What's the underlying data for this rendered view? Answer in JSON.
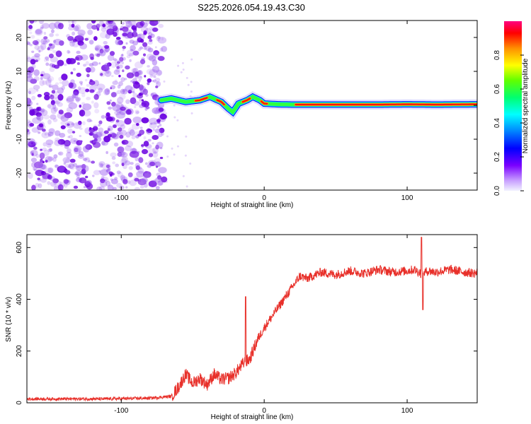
{
  "title": "S225.2026.054.19.43.C30",
  "colors": {
    "trace": "#e8302a",
    "scatter": "#9a5cf0",
    "scatter_dark": "#6a00e0",
    "axis": "#000000"
  },
  "chart_data": [
    {
      "type": "heatmap",
      "name": "spectrogram",
      "xlabel": "Height of straight line (km)",
      "ylabel": "Frequency (Hz)",
      "xlim": [
        -166,
        149
      ],
      "ylim": [
        -25,
        25
      ],
      "xticks": [
        -100,
        0,
        100
      ],
      "xtick_labels": [
        "-100",
        "0",
        "100"
      ],
      "yticks": [
        -20,
        -10,
        0,
        10,
        20
      ],
      "ytick_labels": [
        "-20",
        "-10",
        "0",
        "10",
        "20"
      ],
      "noise_region_x": [
        -166,
        -70
      ],
      "ridge": {
        "x": [
          -72,
          -65,
          -55,
          -45,
          -38,
          -30,
          -25,
          -22,
          -18,
          -12,
          -8,
          -3,
          0,
          10,
          20,
          40,
          80,
          100,
          120,
          149
        ],
        "freq": [
          1.5,
          2.0,
          1.0,
          1.5,
          2.5,
          1.0,
          -1.0,
          -2.0,
          0.5,
          1.5,
          2.5,
          1.5,
          0.5,
          0.3,
          0.2,
          0.2,
          0.2,
          0.3,
          0.2,
          0.3
        ]
      }
    },
    {
      "type": "colorbar",
      "name": "colorbar",
      "label": "Normalized spectral amplitude",
      "range": [
        0.0,
        1.0
      ],
      "ticks": [
        0.0,
        0.2,
        0.4,
        0.6,
        0.8
      ],
      "tick_labels": [
        "0.0",
        "0.2",
        "0.4",
        "0.6",
        "0.8"
      ]
    },
    {
      "type": "line",
      "name": "snr",
      "xlabel": "Height of straight line (km)",
      "ylabel": "SNR (10 * v/v)",
      "xlim": [
        -166,
        149
      ],
      "ylim": [
        0,
        650
      ],
      "xticks": [
        -100,
        0,
        100
      ],
      "xtick_labels": [
        "-100",
        "0",
        "100"
      ],
      "yticks": [
        0,
        200,
        400,
        600
      ],
      "ytick_labels": [
        "0",
        "200",
        "400",
        "600"
      ],
      "series": [
        {
          "name": "SNR",
          "x": [
            -166,
            -140,
            -110,
            -80,
            -65,
            -60,
            -55,
            -50,
            -45,
            -40,
            -35,
            -30,
            -25,
            -20,
            -15,
            -10,
            -5,
            0,
            5,
            10,
            15,
            20,
            25,
            30,
            40,
            50,
            60,
            70,
            80,
            90,
            100,
            105,
            110,
            115,
            120,
            130,
            140,
            149
          ],
          "y": [
            15,
            15,
            15,
            18,
            25,
            60,
            110,
            75,
            95,
            70,
            110,
            90,
            95,
            115,
            150,
            170,
            240,
            290,
            330,
            370,
            410,
            450,
            490,
            480,
            505,
            495,
            510,
            500,
            515,
            505,
            510,
            515,
            500,
            510,
            505,
            515,
            505,
            500
          ]
        }
      ]
    }
  ]
}
